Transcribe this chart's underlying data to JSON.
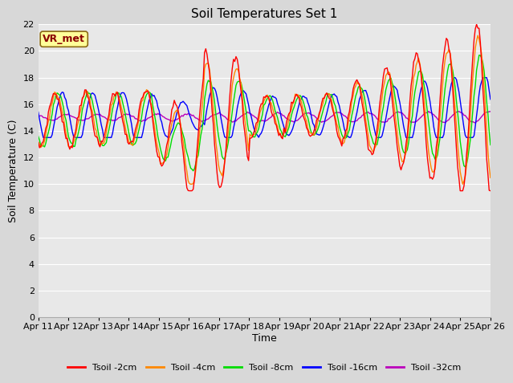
{
  "title": "Soil Temperatures Set 1",
  "xlabel": "Time",
  "ylabel": "Soil Temperature (C)",
  "ylim": [
    0,
    22
  ],
  "yticks": [
    0,
    2,
    4,
    6,
    8,
    10,
    12,
    14,
    16,
    18,
    20,
    22
  ],
  "xtick_labels": [
    "Apr 11",
    "Apr 12",
    "Apr 13",
    "Apr 14",
    "Apr 15",
    "Apr 16",
    "Apr 17",
    "Apr 18",
    "Apr 19",
    "Apr 20",
    "Apr 21",
    "Apr 22",
    "Apr 23",
    "Apr 24",
    "Apr 25",
    "Apr 26"
  ],
  "series_colors": [
    "#ff0000",
    "#ff8800",
    "#00dd00",
    "#0000ff",
    "#bb00bb"
  ],
  "series_labels": [
    "Tsoil -2cm",
    "Tsoil -4cm",
    "Tsoil -8cm",
    "Tsoil -16cm",
    "Tsoil -32cm"
  ],
  "line_width": 1.0,
  "bg_color": "#d8d8d8",
  "plot_bg_color": "#e8e8e8",
  "annotation_text": "VR_met",
  "annotation_color": "#8b0000",
  "annotation_bg": "#ffff99",
  "title_fontsize": 11,
  "axis_fontsize": 9,
  "tick_fontsize": 8,
  "legend_fontsize": 8
}
